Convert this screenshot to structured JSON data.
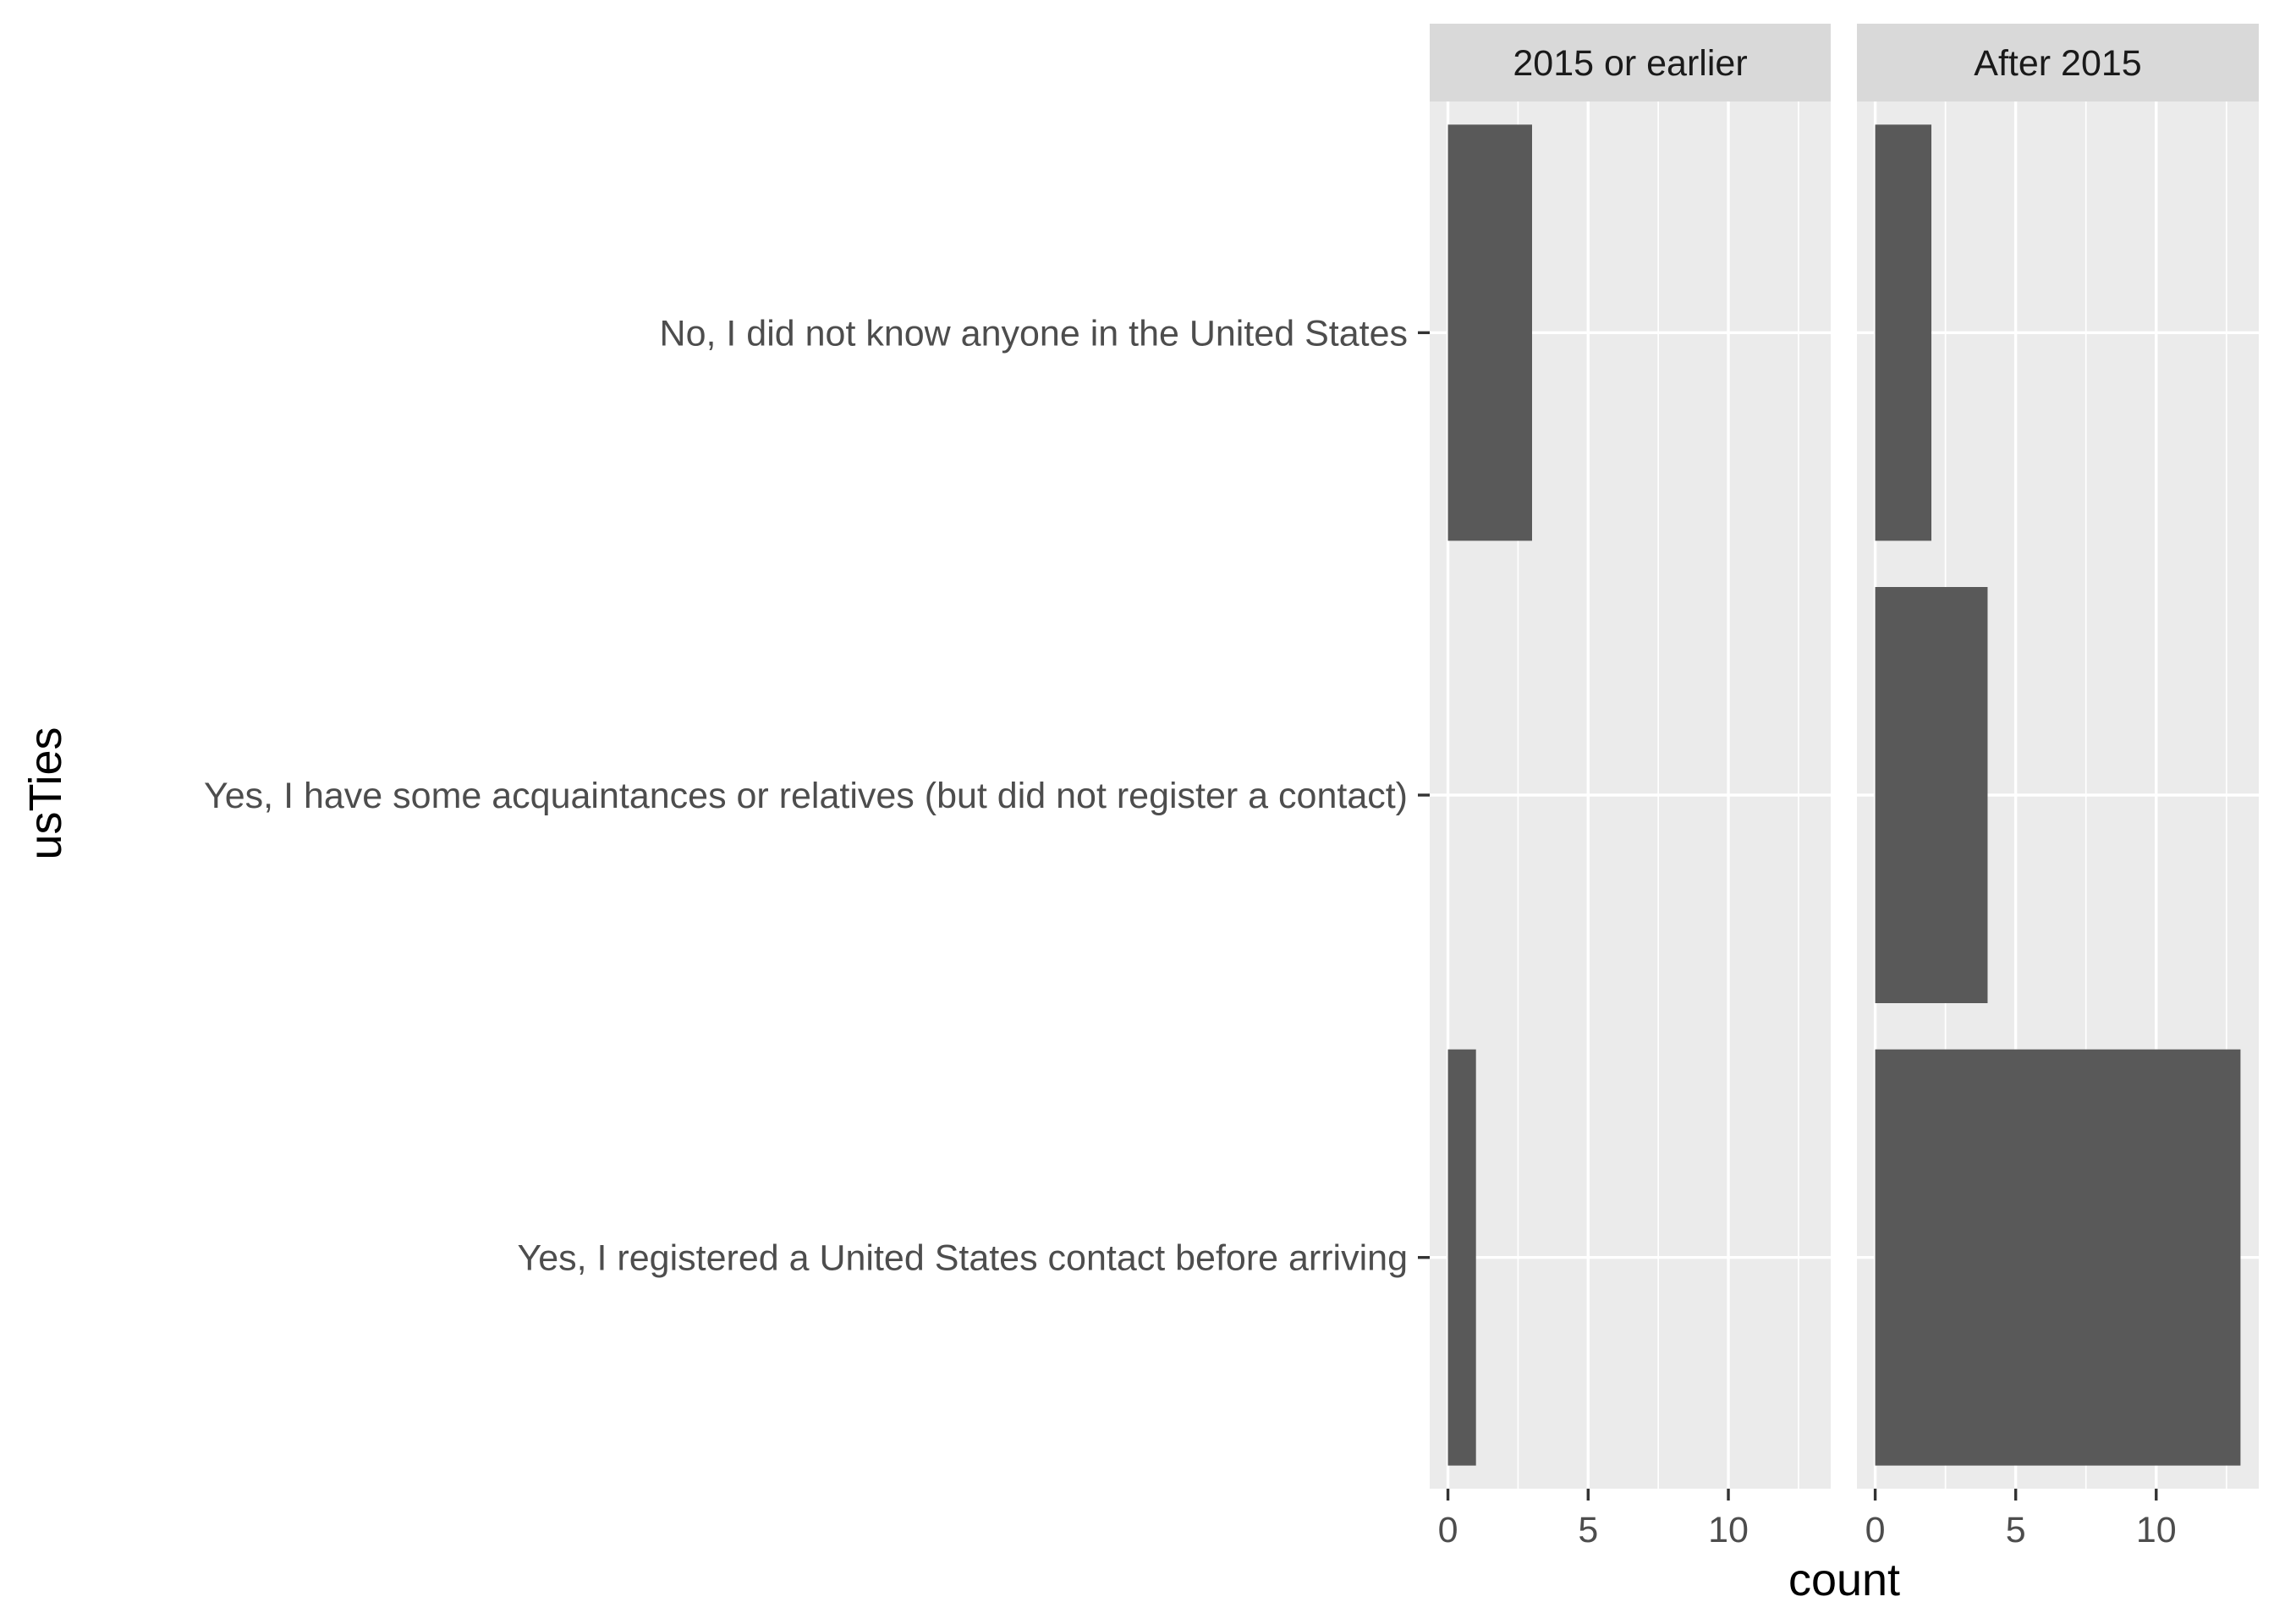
{
  "chart_data": {
    "type": "bar",
    "orientation": "horizontal",
    "facet_labels": [
      "2015 or earlier",
      "After 2015"
    ],
    "categories": [
      "No, I did not know anyone in the United States",
      "Yes, I have some acquaintances or relatives (but did not register a contact)",
      "Yes, I registered a United States contact before arriving"
    ],
    "series": [
      {
        "facet": "2015 or earlier",
        "values": [
          3,
          0,
          1
        ]
      },
      {
        "facet": "After 2015",
        "values": [
          2,
          4,
          13
        ]
      }
    ],
    "xlabel": "count",
    "ylabel": "usTies",
    "xticks": [
      0,
      5,
      10
    ],
    "xlim": [
      -0.65,
      13.65
    ],
    "grid": true,
    "legend": "none",
    "colors": {
      "bar": "#595959",
      "panel": "#ebebeb",
      "strip": "#d9d9d9",
      "grid": "#ffffff"
    }
  }
}
